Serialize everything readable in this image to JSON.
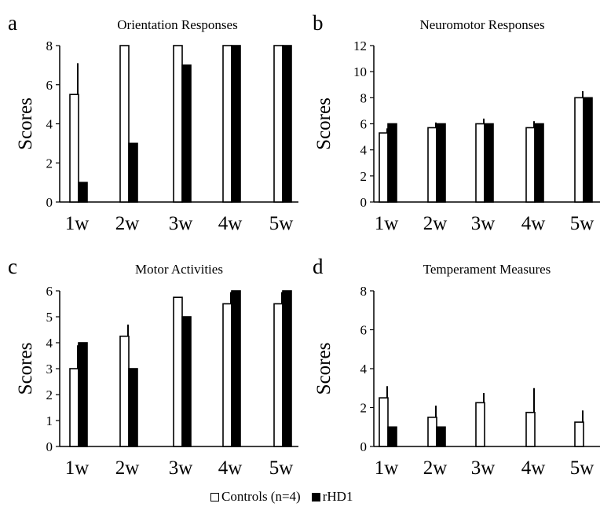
{
  "chart_data": [
    {
      "panel_letter": "a",
      "type": "bar",
      "title": "Orientation Responses",
      "ylabel": "Scores",
      "ylim": [
        0,
        8
      ],
      "yticks": [
        0,
        2,
        4,
        6,
        8
      ],
      "categories": [
        "1w",
        "2w",
        "3w",
        "4w",
        "5w"
      ],
      "series": [
        {
          "name": "Controls (n=4)",
          "values": [
            5.5,
            8,
            8,
            8,
            8
          ],
          "errors": [
            1.6,
            0,
            0,
            0,
            0
          ]
        },
        {
          "name": "rHD1",
          "values": [
            1,
            3,
            7,
            8,
            8
          ],
          "errors": [
            0,
            0,
            0,
            0,
            0
          ]
        }
      ]
    },
    {
      "panel_letter": "b",
      "type": "bar",
      "title": "Neuromotor Responses",
      "ylabel": "Scores",
      "ylim": [
        0,
        12
      ],
      "yticks": [
        0,
        2,
        4,
        6,
        8,
        10,
        12
      ],
      "categories": [
        "1w",
        "2w",
        "3w",
        "4w",
        "5w"
      ],
      "series": [
        {
          "name": "Controls (n=4)",
          "values": [
            5.3,
            5.7,
            6,
            5.7,
            8
          ],
          "errors": [
            0.35,
            0.4,
            0.4,
            0.5,
            0.5
          ]
        },
        {
          "name": "rHD1",
          "values": [
            6,
            6,
            6,
            6,
            8
          ],
          "errors": [
            0,
            0,
            0,
            0,
            0
          ]
        }
      ]
    },
    {
      "panel_letter": "c",
      "type": "bar",
      "title": "Motor Activities",
      "ylabel": "Scores",
      "ylim": [
        0,
        6
      ],
      "yticks": [
        0,
        1,
        2,
        3,
        4,
        5,
        6
      ],
      "categories": [
        "1w",
        "2w",
        "3w",
        "4w",
        "5w"
      ],
      "series": [
        {
          "name": "Controls (n=4)",
          "values": [
            3,
            4.25,
            5.75,
            5.5,
            5.5
          ],
          "errors": [
            0.9,
            0.45,
            0,
            0.45,
            0.45
          ]
        },
        {
          "name": "rHD1",
          "values": [
            4,
            3,
            5,
            6,
            6
          ],
          "errors": [
            0,
            0,
            0,
            0,
            0
          ]
        }
      ]
    },
    {
      "panel_letter": "d",
      "type": "bar",
      "title": "Temperament Measures",
      "ylabel": "Scores",
      "ylim": [
        0,
        8
      ],
      "yticks": [
        0,
        2,
        4,
        6,
        8
      ],
      "categories": [
        "1w",
        "2w",
        "3w",
        "4w",
        "5w"
      ],
      "series": [
        {
          "name": "Controls (n=4)",
          "values": [
            2.5,
            1.5,
            2.25,
            1.75,
            1.25
          ],
          "errors": [
            0.6,
            0.6,
            0.5,
            1.25,
            0.6
          ]
        },
        {
          "name": "rHD1",
          "values": [
            1,
            1,
            0,
            0,
            0
          ],
          "errors": [
            0,
            0,
            0,
            0,
            0
          ]
        }
      ]
    }
  ],
  "legend": [
    {
      "label": "Controls (n=4)",
      "fill": "#ffffff"
    },
    {
      "label": "rHD1",
      "fill": "#000000"
    }
  ]
}
